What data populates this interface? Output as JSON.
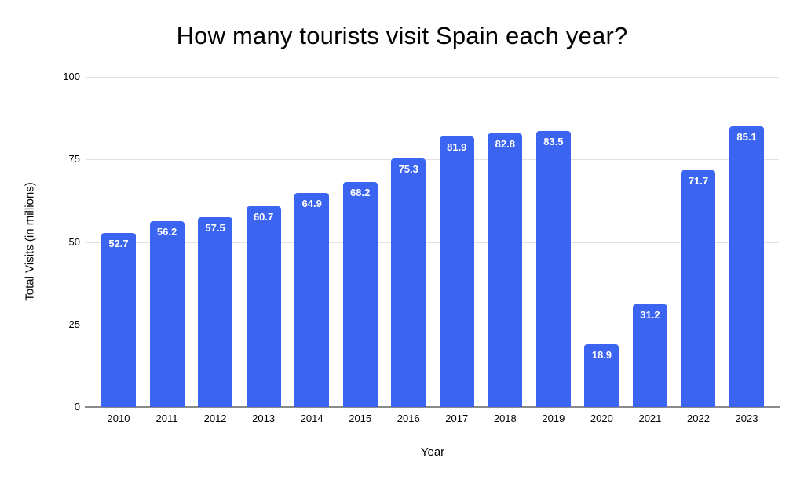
{
  "chart_data": {
    "type": "bar",
    "title": "How many tourists visit Spain each year?",
    "xlabel": "Year",
    "ylabel": "Total Visits (in millions)",
    "categories": [
      "2010",
      "2011",
      "2012",
      "2013",
      "2014",
      "2015",
      "2016",
      "2017",
      "2018",
      "2019",
      "2020",
      "2021",
      "2022",
      "2023"
    ],
    "values": [
      52.7,
      56.2,
      57.5,
      60.7,
      64.9,
      68.2,
      75.3,
      81.9,
      82.8,
      83.5,
      18.9,
      31.2,
      71.7,
      85.1
    ],
    "ylim": [
      0,
      100
    ],
    "yticks": [
      0,
      25,
      50,
      75,
      100
    ],
    "grid": true,
    "legend_position": "none",
    "bar_color": "#3b64f1",
    "bar_label_color": "#ffffff",
    "gridline_color": "#e2e2e2",
    "axis_line_color": "#8a8a8a",
    "text_color": "#000000",
    "background_color": "#ffffff"
  }
}
